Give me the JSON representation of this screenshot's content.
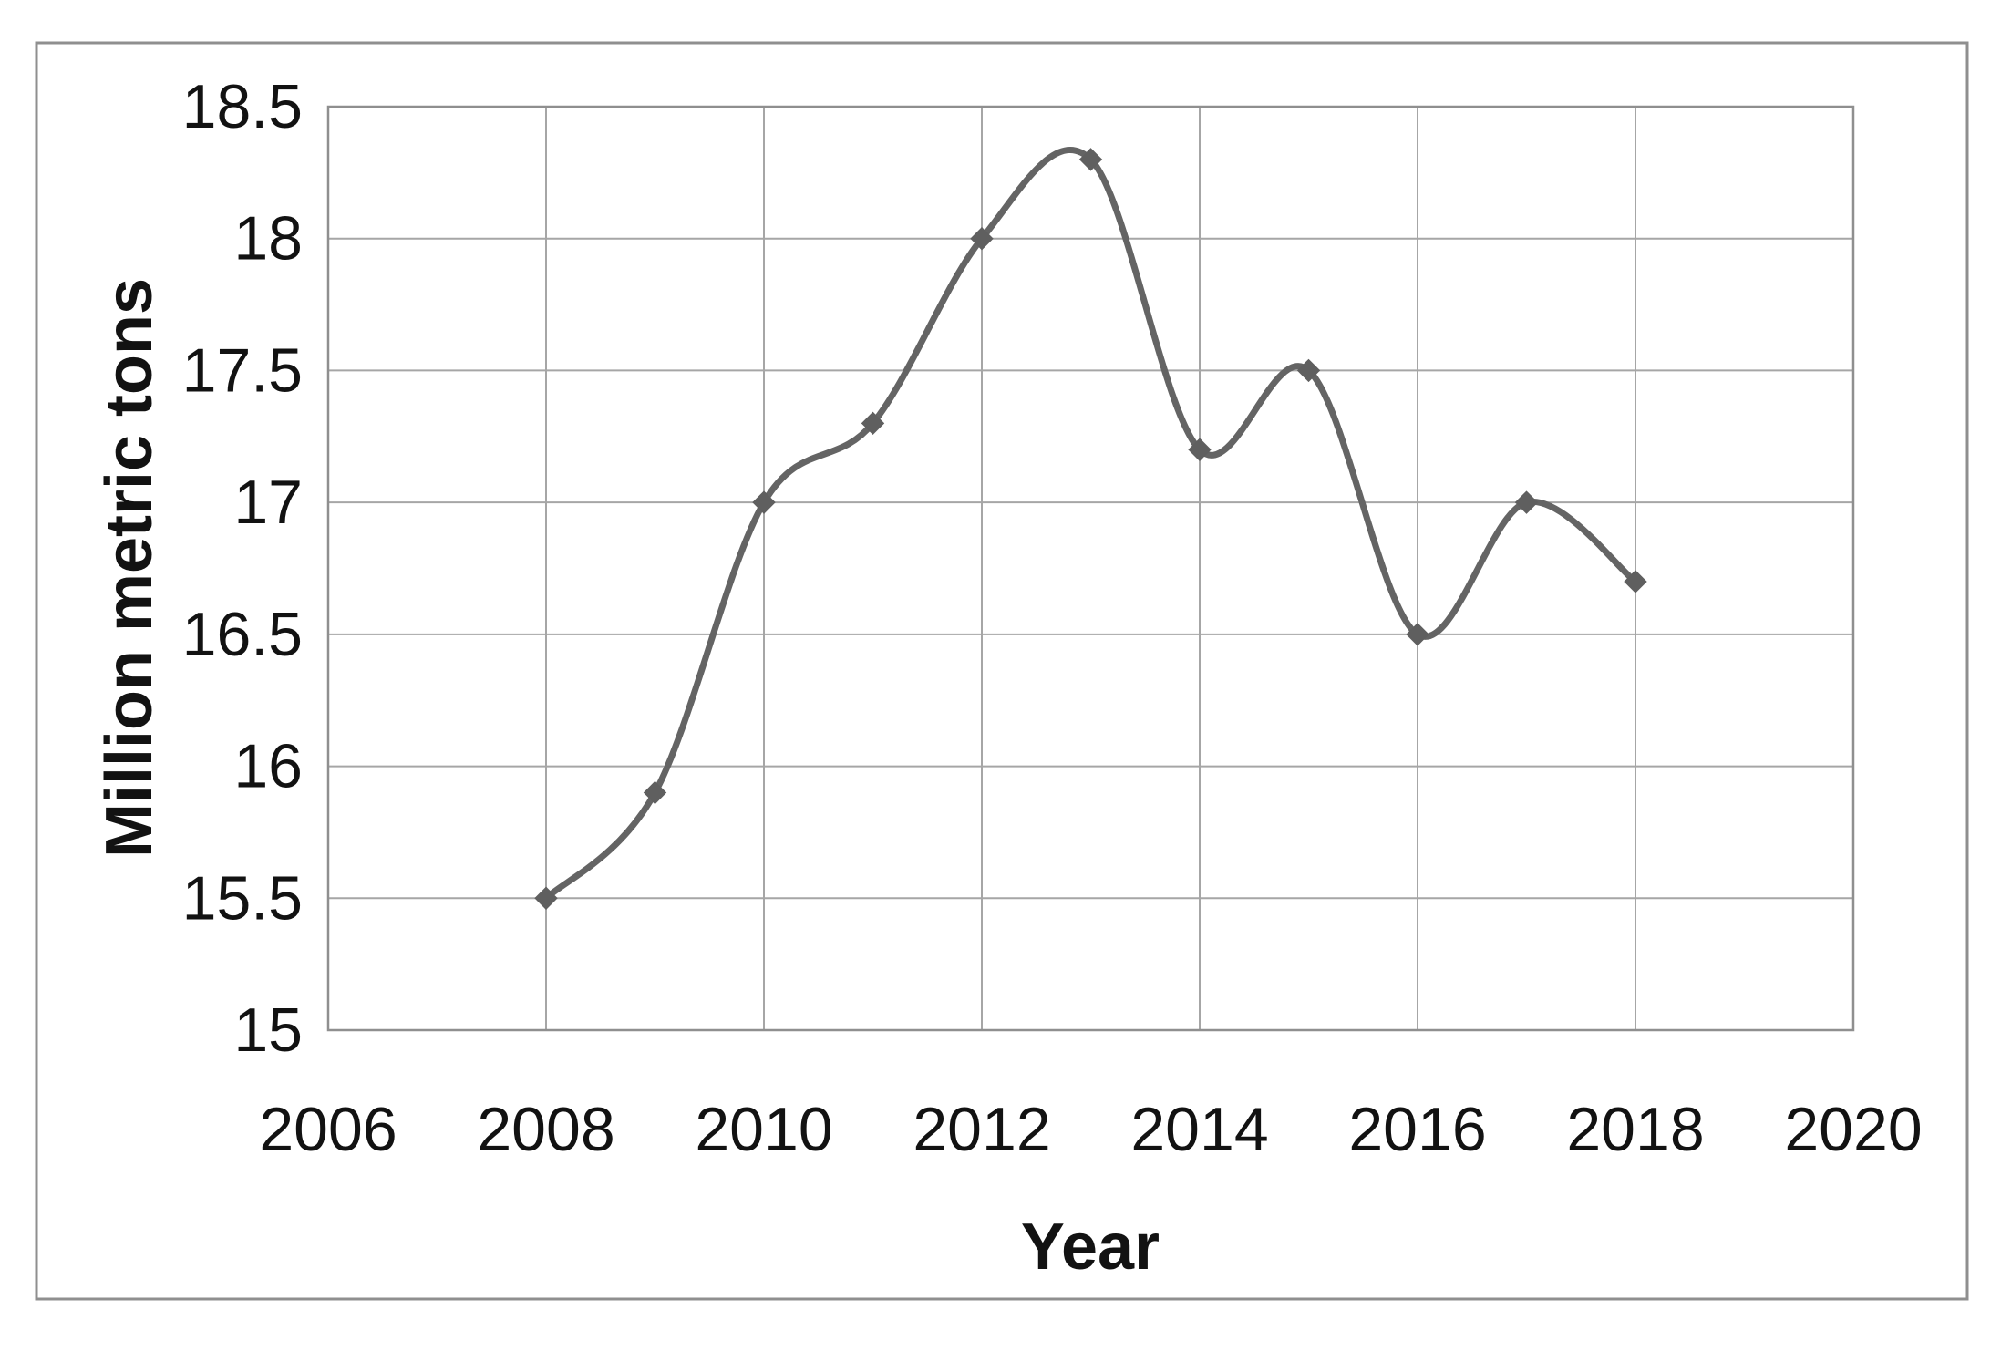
{
  "figure": {
    "background": "#ffffff",
    "border_color": "#8f8f8f",
    "title": ""
  },
  "chart_data": {
    "type": "line",
    "x": [
      2008,
      2009,
      2010,
      2011,
      2012,
      2013,
      2014,
      2015,
      2016,
      2017,
      2018
    ],
    "values": [
      15.5,
      15.9,
      17.0,
      17.3,
      18.0,
      18.3,
      17.2,
      17.5,
      16.5,
      17.0,
      16.7
    ],
    "title": "",
    "xlabel": "Year",
    "ylabel": "Million metric tons",
    "xlim": [
      2006,
      2020
    ],
    "ylim": [
      15,
      18.5
    ],
    "x_ticks": [
      2006,
      2008,
      2010,
      2012,
      2014,
      2016,
      2018,
      2020
    ],
    "x_tick_labels": [
      "2006",
      "2008",
      "2010",
      "2012",
      "2014",
      "2016",
      "2018",
      "2020"
    ],
    "y_ticks": [
      15,
      15.5,
      16,
      16.5,
      17,
      17.5,
      18,
      18.5
    ],
    "y_tick_labels": [
      "15",
      "15.5",
      "16",
      "16.5",
      "17",
      "17.5",
      "18",
      "18.5"
    ],
    "grid": true,
    "legend_position": "none",
    "smooth": true,
    "marker": "diamond",
    "line_color": "#646464",
    "marker_color": "#5f5f5f",
    "gridline_color": "#a6a6a6",
    "plot_border_color": "#8f8f8f"
  }
}
